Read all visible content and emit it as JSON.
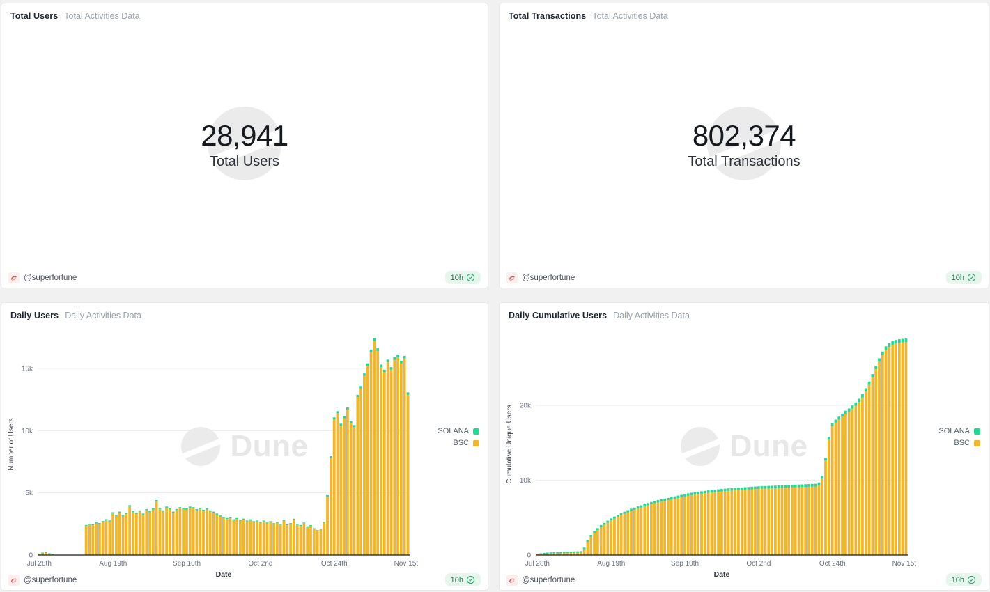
{
  "watermark": {
    "text": "Dune"
  },
  "footer": {
    "author": "@superfortune",
    "refresh": "10h"
  },
  "colors": {
    "solana": "#27D795",
    "bsc": "#F0B62F",
    "badge_bg": "#e7f6ec",
    "badge_text": "#2b6e52"
  },
  "panels": {
    "total_users": {
      "title": "Total Users",
      "subtitle": "Total Activities Data",
      "value": "28,941",
      "label": "Total Users"
    },
    "total_transactions": {
      "title": "Total Transactions",
      "subtitle": "Total Activities Data",
      "value": "802,374",
      "label": "Total Transactions"
    },
    "daily_users": {
      "title": "Daily Users",
      "subtitle": "Daily Activities Data"
    },
    "daily_cumulative_users": {
      "title": "Daily Cumulative Users",
      "subtitle": "Daily Activities Data"
    }
  },
  "chart_data": [
    {
      "type": "bar",
      "stacked": true,
      "title": "Daily Users",
      "xlabel": "Date",
      "ylabel": "Number of Users",
      "x_tick_labels": [
        "Jul 28th",
        "Aug 19th",
        "Sep 10th",
        "Oct 2nd",
        "Oct 24th",
        "Nov 15th"
      ],
      "x_tick_indices": [
        0,
        22,
        44,
        66,
        88,
        110
      ],
      "y_tick_values": [
        0,
        5000,
        10000,
        15000
      ],
      "y_tick_labels": [
        "0",
        "5k",
        "10k",
        "15k"
      ],
      "y_max": 17800,
      "legend": [
        {
          "name": "SOLANA",
          "color": "#27D795"
        },
        {
          "name": "BSC",
          "color": "#F0B62F"
        }
      ],
      "series": [
        {
          "name": "BSC",
          "color": "#F0B62F",
          "values": [
            60,
            130,
            170,
            100,
            50,
            0,
            0,
            0,
            0,
            0,
            0,
            0,
            0,
            0,
            2350,
            2450,
            2400,
            2550,
            2500,
            2650,
            2800,
            2700,
            3350,
            3150,
            3400,
            3100,
            3300,
            3900,
            3450,
            3300,
            3500,
            3250,
            3600,
            3450,
            3650,
            4300,
            3700,
            3500,
            3800,
            3650,
            3400,
            3600,
            3750,
            3700,
            3650,
            3800,
            3750,
            3600,
            3700,
            3550,
            3650,
            3500,
            3400,
            3250,
            3100,
            3000,
            2900,
            2950,
            2800,
            2900,
            2750,
            2850,
            2700,
            2800,
            2650,
            2700,
            2600,
            2700,
            2550,
            2650,
            2500,
            2600,
            2450,
            2750,
            2400,
            2500,
            2850,
            2450,
            2350,
            2550,
            2250,
            2350,
            2100,
            1950,
            2050,
            2600,
            4700,
            7800,
            10900,
            11400,
            10400,
            11000,
            11700,
            10600,
            10300,
            12700,
            13400,
            14400,
            15200,
            16300,
            17200,
            16400,
            15100,
            14700,
            15500,
            14900,
            15700,
            15900,
            15400,
            15800,
            12900
          ]
        },
        {
          "name": "SOLANA",
          "color": "#27D795",
          "values": [
            50,
            70,
            60,
            40,
            30,
            0,
            0,
            0,
            0,
            0,
            0,
            0,
            0,
            0,
            60,
            70,
            65,
            75,
            70,
            80,
            85,
            80,
            90,
            85,
            95,
            85,
            90,
            110,
            95,
            90,
            95,
            90,
            100,
            95,
            100,
            120,
            100,
            95,
            105,
            100,
            95,
            100,
            105,
            100,
            100,
            105,
            100,
            95,
            100,
            95,
            100,
            95,
            90,
            90,
            85,
            80,
            80,
            80,
            75,
            80,
            75,
            80,
            75,
            75,
            70,
            75,
            70,
            75,
            70,
            70,
            65,
            70,
            65,
            75,
            65,
            70,
            75,
            65,
            60,
            65,
            60,
            60,
            55,
            55,
            55,
            70,
            120,
            150,
            170,
            170,
            160,
            160,
            170,
            155,
            150,
            180,
            190,
            200,
            210,
            220,
            230,
            220,
            210,
            200,
            210,
            205,
            210,
            215,
            210,
            215,
            180
          ]
        }
      ]
    },
    {
      "type": "bar",
      "stacked": true,
      "title": "Daily Cumulative Users",
      "xlabel": "Date",
      "ylabel": "Cumulative Unique Users",
      "x_tick_labels": [
        "Jul 28th",
        "Aug 19th",
        "Sep 10th",
        "Oct 2nd",
        "Oct 24th",
        "Nov 15th"
      ],
      "x_tick_indices": [
        0,
        22,
        44,
        66,
        88,
        110
      ],
      "y_tick_values": [
        0,
        10000,
        20000
      ],
      "y_tick_labels": [
        "0",
        "10k",
        "20k"
      ],
      "y_max": 29600,
      "legend": [
        {
          "name": "SOLANA",
          "color": "#27D795"
        },
        {
          "name": "BSC",
          "color": "#F0B62F"
        }
      ],
      "series": [
        {
          "name": "BSC",
          "color": "#F0B62F",
          "values": [
            100,
            135,
            165,
            185,
            200,
            215,
            225,
            240,
            250,
            265,
            275,
            285,
            295,
            310,
            780,
            1770,
            2465,
            2960,
            3350,
            3745,
            4040,
            4335,
            4630,
            4875,
            5120,
            5320,
            5515,
            5710,
            5910,
            6055,
            6205,
            6350,
            6500,
            6650,
            6795,
            6945,
            7040,
            7140,
            7240,
            7335,
            7435,
            7535,
            7635,
            7730,
            7830,
            7930,
            8010,
            8080,
            8145,
            8205,
            8265,
            8315,
            8365,
            8410,
            8460,
            8500,
            8540,
            8580,
            8615,
            8645,
            8675,
            8705,
            8735,
            8760,
            8790,
            8820,
            8850,
            8870,
            8885,
            8905,
            8925,
            8945,
            8965,
            8980,
            9000,
            9020,
            9040,
            9060,
            9075,
            9095,
            9115,
            9135,
            9155,
            9170,
            9340,
            10235,
            12630,
            15420,
            17210,
            17705,
            18100,
            18495,
            18885,
            19180,
            19575,
            19970,
            20465,
            21060,
            21855,
            22750,
            23745,
            24840,
            25840,
            26735,
            27430,
            27825,
            28125,
            28270,
            28370,
            28420,
            28457
          ]
        },
        {
          "name": "SOLANA",
          "color": "#27D795",
          "values": [
            60,
            95,
            125,
            145,
            158,
            166,
            174,
            181,
            187,
            192,
            197,
            202,
            207,
            212,
            220,
            228,
            235,
            242,
            248,
            254,
            260,
            265,
            270,
            274,
            278,
            282,
            285,
            288,
            291,
            294,
            296,
            298,
            300,
            302,
            304,
            306,
            308,
            310,
            312,
            314,
            315,
            316,
            317,
            318,
            319,
            320,
            321,
            322,
            323,
            324,
            325,
            326,
            327,
            328,
            329,
            330,
            331,
            332,
            333,
            334,
            335,
            336,
            337,
            338,
            339,
            340,
            341,
            342,
            343,
            344,
            345,
            346,
            347,
            348,
            349,
            350,
            351,
            352,
            353,
            354,
            355,
            356,
            357,
            358,
            360,
            365,
            372,
            380,
            388,
            395,
            401,
            407,
            413,
            418,
            423,
            428,
            433,
            438,
            443,
            448,
            453,
            458,
            462,
            466,
            470,
            473,
            476,
            478,
            480,
            484,
            484
          ]
        }
      ]
    }
  ]
}
